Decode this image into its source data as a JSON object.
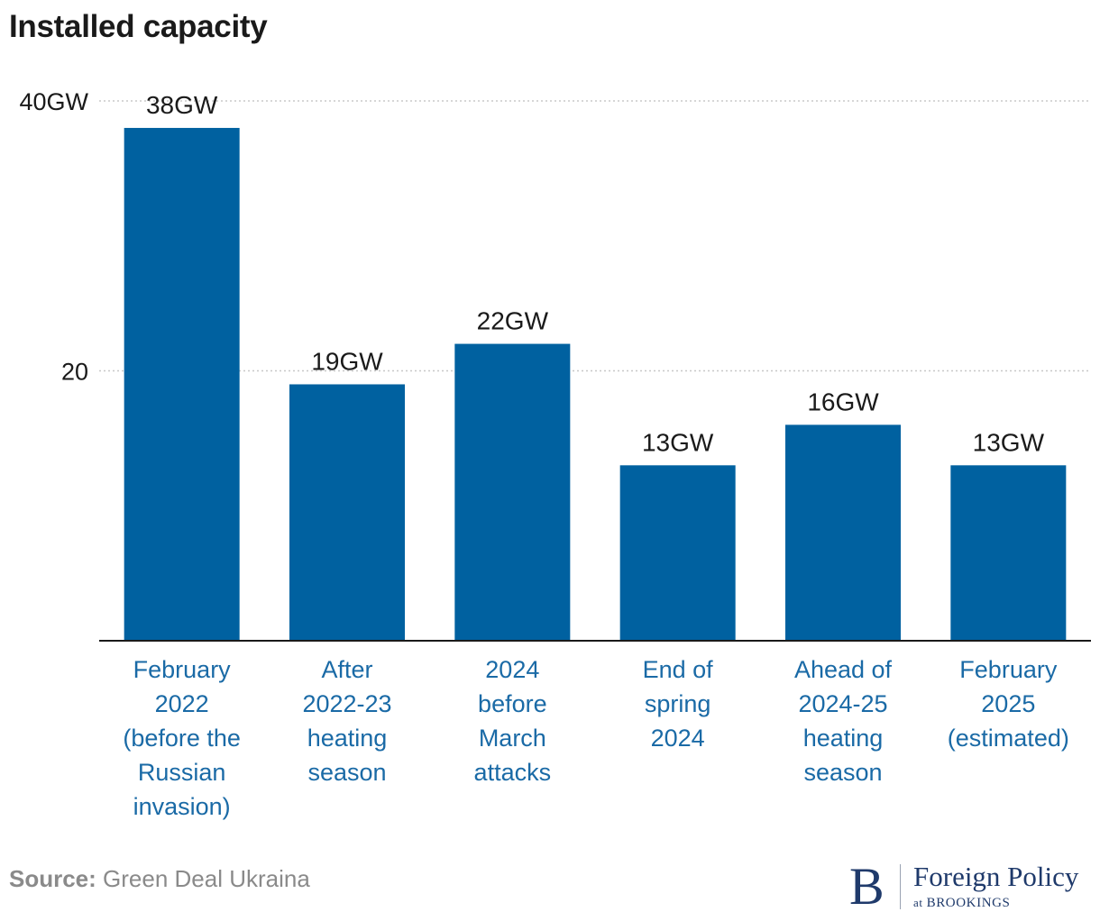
{
  "chart_data": {
    "type": "bar",
    "title": "Installed capacity",
    "categories": [
      [
        "February",
        "2022",
        "(before the",
        "Russian",
        "invasion)"
      ],
      [
        "After",
        "2022-23",
        "heating",
        "season"
      ],
      [
        "2024",
        "before",
        "March",
        "attacks"
      ],
      [
        "End of",
        "spring",
        "2024"
      ],
      [
        "Ahead of",
        "2024-25",
        "heating",
        "season"
      ],
      [
        "February",
        "2025",
        "(estimated)"
      ]
    ],
    "values": [
      38,
      19,
      22,
      13,
      16,
      13
    ],
    "value_labels": [
      "38GW",
      "19GW",
      "22GW",
      "13GW",
      "16GW",
      "13GW"
    ],
    "ylim": [
      0,
      40
    ],
    "yticks": [
      {
        "value": 20,
        "label": "20"
      },
      {
        "value": 40,
        "label": "40GW"
      }
    ],
    "grid": true,
    "bar_color": "#0061a0",
    "category_label_color": "#1a6aa6",
    "xlabel": "",
    "ylabel": ""
  },
  "source": {
    "label": "Source:",
    "text": "Green Deal Ukraina"
  },
  "logo": {
    "letter": "B",
    "name": "Foreign Policy",
    "sub_prefix": "at",
    "sub_name": "BROOKINGS"
  }
}
